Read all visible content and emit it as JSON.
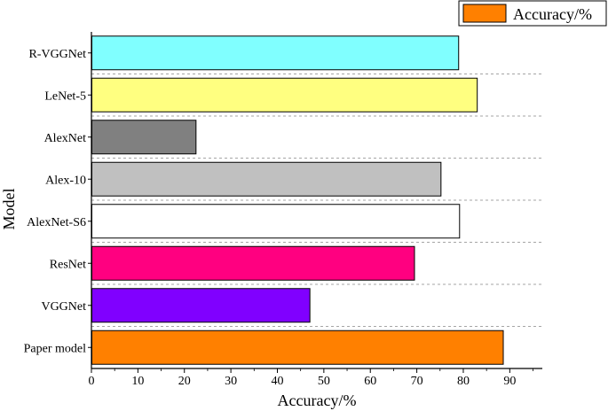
{
  "chart_data": {
    "type": "bar",
    "orientation": "horizontal",
    "title": "",
    "xlabel": "Accuracy/%",
    "ylabel": "Model",
    "xlim": [
      0,
      97
    ],
    "xticks": [
      0,
      10,
      20,
      30,
      40,
      50,
      60,
      70,
      80,
      90
    ],
    "grid": "dashed horizontal separators",
    "legend": {
      "position": "top-right",
      "label": "Accuracy/%",
      "color": "#ff8000"
    },
    "categories": [
      "R-VGGNet",
      "LeNet-5",
      "AlexNet",
      "Alex-10",
      "AlexNet-S6",
      "ResNet",
      "VGGNet",
      "Paper model"
    ],
    "series": [
      {
        "name": "Accuracy/%",
        "values": [
          79,
          83,
          22.5,
          75.2,
          79.2,
          69.5,
          47,
          88.6
        ]
      }
    ],
    "colors": [
      "#80ffff",
      "#ffff80",
      "#808080",
      "#c0c0c0",
      "#ffffff",
      "#ff0080",
      "#8000ff",
      "#ff8000"
    ]
  }
}
